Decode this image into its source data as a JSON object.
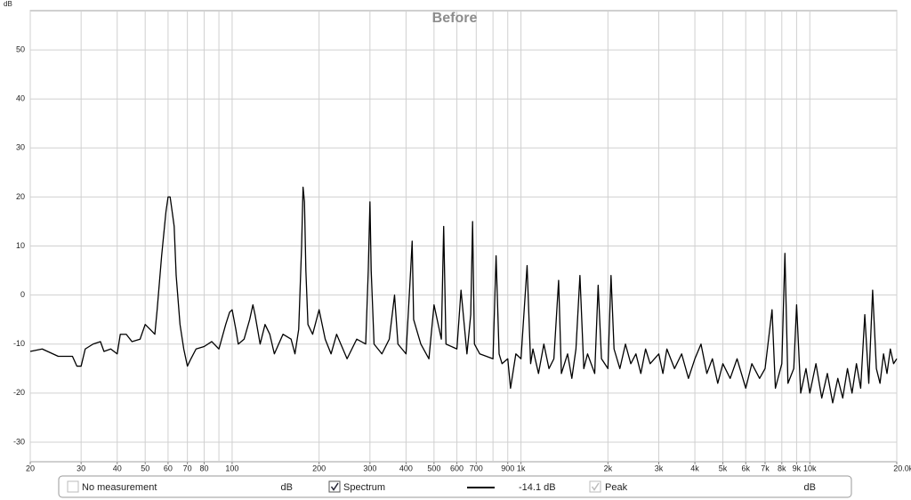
{
  "chart_data": {
    "type": "line",
    "title": "Before",
    "ylabel": "dB",
    "log_x": true,
    "grid": true,
    "xlim": [
      20,
      20000
    ],
    "ylim": [
      -34,
      58
    ],
    "xticks": [
      20,
      30,
      40,
      50,
      60,
      70,
      80,
      100,
      200,
      300,
      400,
      500,
      600,
      700,
      900,
      {
        "value": 1000,
        "label": "1k"
      },
      {
        "value": 2000,
        "label": "2k"
      },
      {
        "value": 3000,
        "label": "3k"
      },
      {
        "value": 4000,
        "label": "4k"
      },
      {
        "value": 5000,
        "label": "5k"
      },
      {
        "value": 6000,
        "label": "6k"
      },
      {
        "value": 7000,
        "label": "7k"
      },
      {
        "value": 8000,
        "label": "8k"
      },
      {
        "value": 9000,
        "label": "9k"
      },
      {
        "value": 10000,
        "label": "10k"
      },
      {
        "value": 20000,
        "label": "20.0k Hz"
      }
    ],
    "xgrid": [
      20,
      30,
      40,
      50,
      60,
      70,
      80,
      90,
      100,
      200,
      300,
      400,
      500,
      600,
      700,
      800,
      900,
      1000,
      2000,
      3000,
      4000,
      5000,
      6000,
      7000,
      8000,
      9000,
      10000,
      20000
    ],
    "yticks": [
      -30,
      -20,
      -10,
      0,
      10,
      20,
      30,
      40,
      50
    ],
    "series": [
      {
        "name": "Spectrum",
        "color": "#000000",
        "checked": true,
        "value_label": "-14.1 dB",
        "x": [
          20,
          22,
          25,
          28,
          29,
          30,
          31,
          33,
          35,
          36,
          38,
          40,
          41,
          43,
          45,
          48,
          50,
          52,
          54,
          55,
          57,
          59,
          60,
          61,
          62,
          63,
          64,
          66,
          68,
          70,
          72,
          75,
          80,
          85,
          90,
          95,
          98,
          100,
          103,
          105,
          110,
          115,
          118,
          120,
          125,
          130,
          135,
          140,
          150,
          160,
          165,
          170,
          174,
          176,
          178,
          180,
          183,
          190,
          200,
          210,
          220,
          230,
          250,
          270,
          290,
          296,
          300,
          303,
          310,
          330,
          350,
          365,
          375,
          400,
          415,
          420,
          425,
          450,
          480,
          500,
          530,
          540,
          550,
          600,
          620,
          650,
          670,
          680,
          690,
          720,
          800,
          820,
          840,
          860,
          900,
          920,
          960,
          1000,
          1050,
          1080,
          1100,
          1150,
          1200,
          1250,
          1300,
          1350,
          1380,
          1450,
          1500,
          1550,
          1600,
          1650,
          1700,
          1800,
          1850,
          1900,
          2000,
          2050,
          2100,
          2200,
          2300,
          2400,
          2500,
          2600,
          2700,
          2800,
          3000,
          3100,
          3200,
          3400,
          3600,
          3800,
          4000,
          4200,
          4400,
          4600,
          4800,
          5000,
          5300,
          5600,
          6000,
          6300,
          6700,
          7000,
          7400,
          7600,
          8000,
          8200,
          8400,
          8800,
          9000,
          9300,
          9700,
          10000,
          10500,
          11000,
          11500,
          12000,
          12500,
          13000,
          13500,
          14000,
          14500,
          15000,
          15500,
          16000,
          16500,
          17000,
          17500,
          18000,
          18500,
          19000,
          19500,
          20000
        ],
        "values": [
          -11.5,
          -11,
          -12.5,
          -12.5,
          -14.5,
          -14.5,
          -11,
          -10,
          -9.5,
          -11.5,
          -11,
          -12,
          -8,
          -8,
          -9.5,
          -9,
          -6,
          -7,
          -8,
          -3,
          8,
          17,
          20,
          20,
          17,
          14,
          4,
          -6,
          -11,
          -14.5,
          -13,
          -11,
          -10.5,
          -9.5,
          -11,
          -6,
          -3.5,
          -3,
          -7,
          -10,
          -9,
          -5,
          -2,
          -4,
          -10,
          -6,
          -8,
          -12,
          -8,
          -9,
          -12,
          -7,
          10,
          22,
          19,
          5,
          -6,
          -8,
          -3,
          -9,
          -12,
          -8,
          -13,
          -9,
          -10,
          5,
          19,
          5,
          -10,
          -12,
          -9,
          0,
          -10,
          -12,
          5,
          11,
          -5,
          -10,
          -13,
          -2,
          -9,
          14,
          -10,
          -11,
          1,
          -12,
          -4,
          15,
          -10,
          -12,
          -13,
          8,
          -12,
          -14,
          -13,
          -19,
          -12,
          -13,
          6,
          -14,
          -11,
          -16,
          -10,
          -15,
          -13,
          3,
          -16,
          -12,
          -17,
          -11,
          4,
          -15,
          -12,
          -16,
          2,
          -13,
          -15,
          4,
          -11,
          -15,
          -10,
          -14,
          -12,
          -16,
          -11,
          -14,
          -12,
          -16,
          -11,
          -15,
          -12,
          -17,
          -13,
          -10,
          -16,
          -13,
          -18,
          -14,
          -17,
          -13,
          -19,
          -14,
          -17,
          -15,
          -3,
          -19,
          -14,
          8.5,
          -18,
          -15,
          -2,
          -20,
          -15,
          -20,
          -14,
          -21,
          -16,
          -22,
          -17,
          -21,
          -15,
          -20,
          -14,
          -19,
          -4,
          -18,
          1,
          -15,
          -18,
          -12,
          -16,
          -11,
          -14,
          -13
        ]
      }
    ],
    "legend_bar": {
      "no_measurement": {
        "label": "No measurement",
        "unit": "dB",
        "checked": false,
        "enabled": false
      },
      "spectrum_unit": "",
      "peak": {
        "label": "Peak",
        "unit": "dB",
        "checked": true,
        "enabled": false
      }
    }
  }
}
